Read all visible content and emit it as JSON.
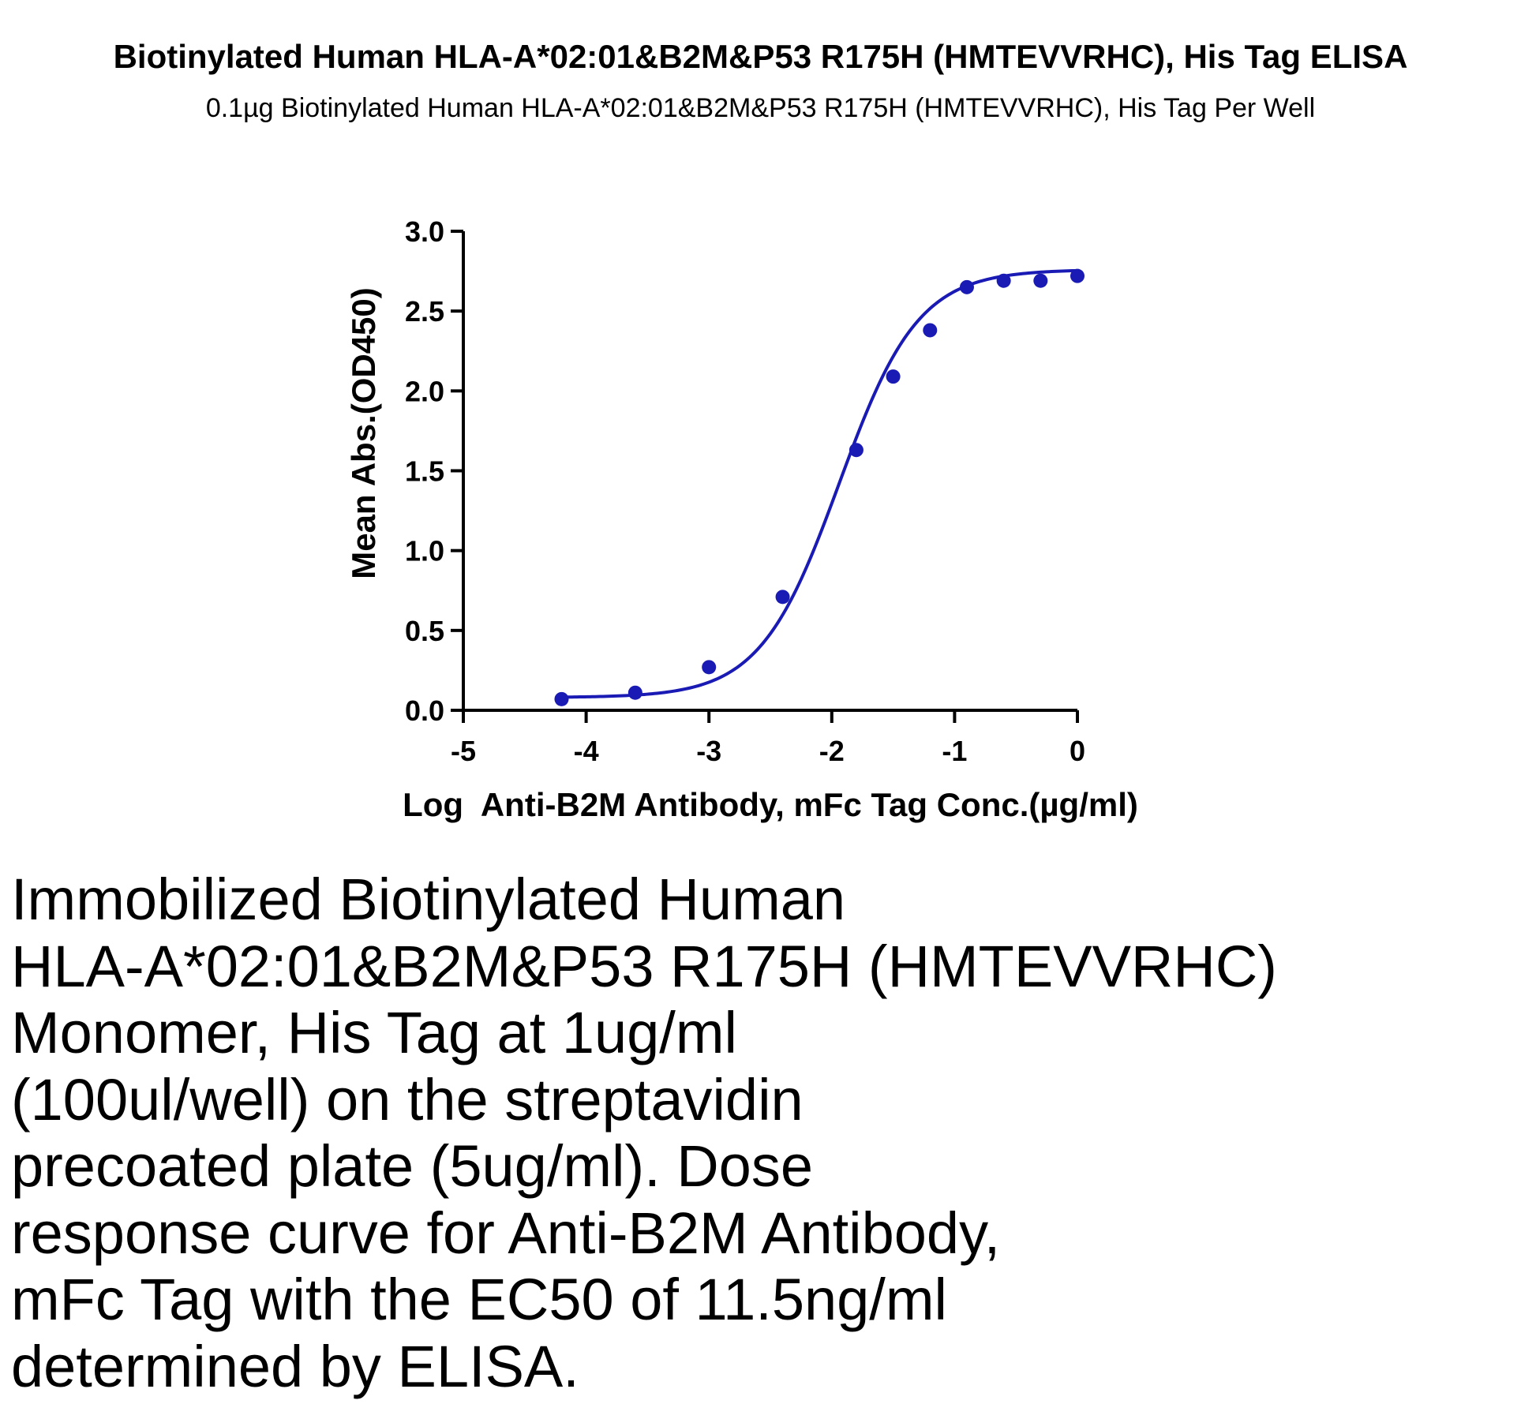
{
  "title": "Biotinylated Human HLA-A*02:01&B2M&P53 R175H (HMTEVVRHC), His Tag ELISA",
  "subtitle": "0.1µg Biotinylated Human HLA-A*02:01&B2M&P53 R175H (HMTEVVRHC), His Tag Per Well",
  "chart_data": {
    "type": "scatter",
    "xlabel": "Log  Anti-B2M Antibody, mFc Tag Conc.(µg/ml)",
    "ylabel": "Mean Abs.(OD450)",
    "xlim": [
      -5,
      0
    ],
    "ylim": [
      0,
      3.0
    ],
    "x_ticks": [
      "-5",
      "-4",
      "-3",
      "-2",
      "-1",
      "0"
    ],
    "y_ticks": [
      "0.0",
      "0.5",
      "1.0",
      "1.5",
      "2.0",
      "2.5",
      "3.0"
    ],
    "series": [
      {
        "color": "#1a1ab4",
        "x": [
          -4.2,
          -3.6,
          -3.0,
          -2.4,
          -1.8,
          -1.5,
          -1.2,
          -0.9,
          -0.6,
          -0.3,
          0.0
        ],
        "y": [
          0.07,
          0.11,
          0.27,
          0.71,
          1.63,
          2.09,
          2.38,
          2.65,
          2.69,
          2.69,
          2.72
        ]
      }
    ],
    "fit": {
      "model": "4PL",
      "bottom": 0.08,
      "top": 2.76,
      "log_ec50": -1.94,
      "hill": 1.35
    },
    "grid": false
  },
  "caption": {
    "lines": [
      "Immobilized Biotinylated Human",
      "HLA-A*02:01&B2M&P53 R175H (HMTEVVRHC)",
      "Monomer, His Tag at 1ug/ml",
      "(100ul/well) on the streptavidin",
      "precoated plate (5ug/ml). Dose",
      "response curve for Anti-B2M Antibody,",
      "mFc Tag with the EC50 of 11.5ng/ml",
      "determined by ELISA."
    ]
  }
}
